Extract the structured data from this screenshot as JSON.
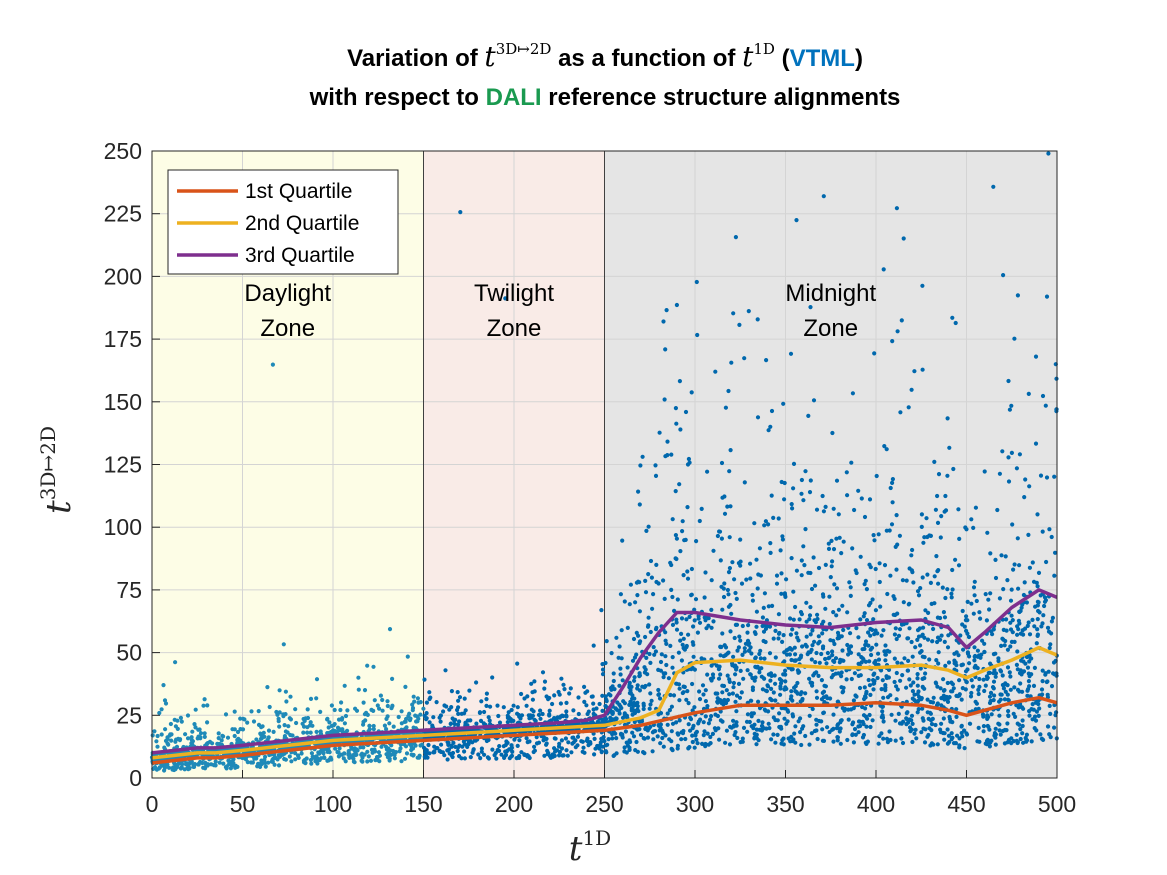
{
  "title": {
    "line1_a": "Variation of ",
    "line1_sym1": "t",
    "line1_sup1": "3D↦2D",
    "line1_b": " as a function of ",
    "line1_sym2": "t",
    "line1_sup2": "1D",
    "line1_c": " (",
    "line1_vtml": "VTML",
    "line1_d": ")",
    "line2_a": "with respect to ",
    "line2_dali": "DALI",
    "line2_b": " reference structure alignments",
    "vtml_color": "#0072bd",
    "dali_color": "#1a9a50"
  },
  "chart_data": {
    "type": "scatter",
    "xlabel_sym": "t",
    "xlabel_sup": "1D",
    "ylabel_sym": "t",
    "ylabel_sup": "3D↦2D",
    "xlim": [
      0,
      500
    ],
    "ylim": [
      0,
      250
    ],
    "xticks": [
      0,
      50,
      100,
      150,
      200,
      250,
      300,
      350,
      400,
      450,
      500
    ],
    "yticks": [
      0,
      25,
      50,
      75,
      100,
      125,
      150,
      175,
      200,
      225,
      250
    ],
    "grid": true,
    "zones": [
      {
        "label_l1": "Daylight",
        "label_l2": "Zone",
        "x0": 0,
        "x1": 150,
        "color": "#fdfde6"
      },
      {
        "label_l1": "Twilight",
        "label_l2": "Zone",
        "x0": 150,
        "x1": 250,
        "color": "#f9ebe7"
      },
      {
        "label_l1": "Midnight",
        "label_l2": "Zone",
        "x0": 250,
        "x1": 500,
        "color": "#e5e5e5"
      }
    ],
    "scatter_color": "#0068ad",
    "daylight_scatter_color": "#1f8ab8",
    "legend_position": "top-left",
    "series": [
      {
        "name": "1st Quartile",
        "color": "#d95319",
        "x": [
          0,
          25,
          35,
          50,
          75,
          100,
          125,
          150,
          175,
          200,
          225,
          250,
          270,
          300,
          325,
          350,
          375,
          400,
          425,
          440,
          450,
          460,
          475,
          490,
          500
        ],
        "y": [
          6,
          8,
          8,
          9,
          11,
          13,
          14,
          15,
          16,
          17,
          18,
          19,
          21,
          26,
          29,
          29,
          29,
          30,
          29,
          27,
          25,
          27,
          30,
          32,
          30
        ]
      },
      {
        "name": "2nd Quartile",
        "color": "#edb120",
        "x": [
          0,
          25,
          35,
          50,
          75,
          100,
          125,
          150,
          175,
          200,
          225,
          250,
          270,
          280,
          290,
          300,
          325,
          350,
          375,
          400,
          425,
          440,
          450,
          460,
          475,
          490,
          500
        ],
        "y": [
          8,
          10,
          10,
          11,
          13,
          15,
          16,
          17,
          18,
          19,
          20,
          21,
          24,
          27,
          42,
          46,
          47,
          45,
          44,
          44,
          45,
          43,
          40,
          43,
          47,
          52,
          49
        ]
      },
      {
        "name": "3rd Quartile",
        "color": "#7e2f8e",
        "x": [
          0,
          25,
          35,
          50,
          75,
          100,
          125,
          150,
          175,
          200,
          225,
          240,
          250,
          260,
          270,
          280,
          290,
          300,
          325,
          350,
          375,
          400,
          425,
          440,
          450,
          460,
          475,
          490,
          500
        ],
        "y": [
          10,
          12,
          12,
          13,
          15,
          17,
          18,
          19,
          20,
          21,
          22,
          23,
          25,
          36,
          48,
          58,
          66,
          66,
          63,
          61,
          60,
          62,
          63,
          60,
          52,
          58,
          68,
          75,
          72
        ]
      }
    ]
  }
}
